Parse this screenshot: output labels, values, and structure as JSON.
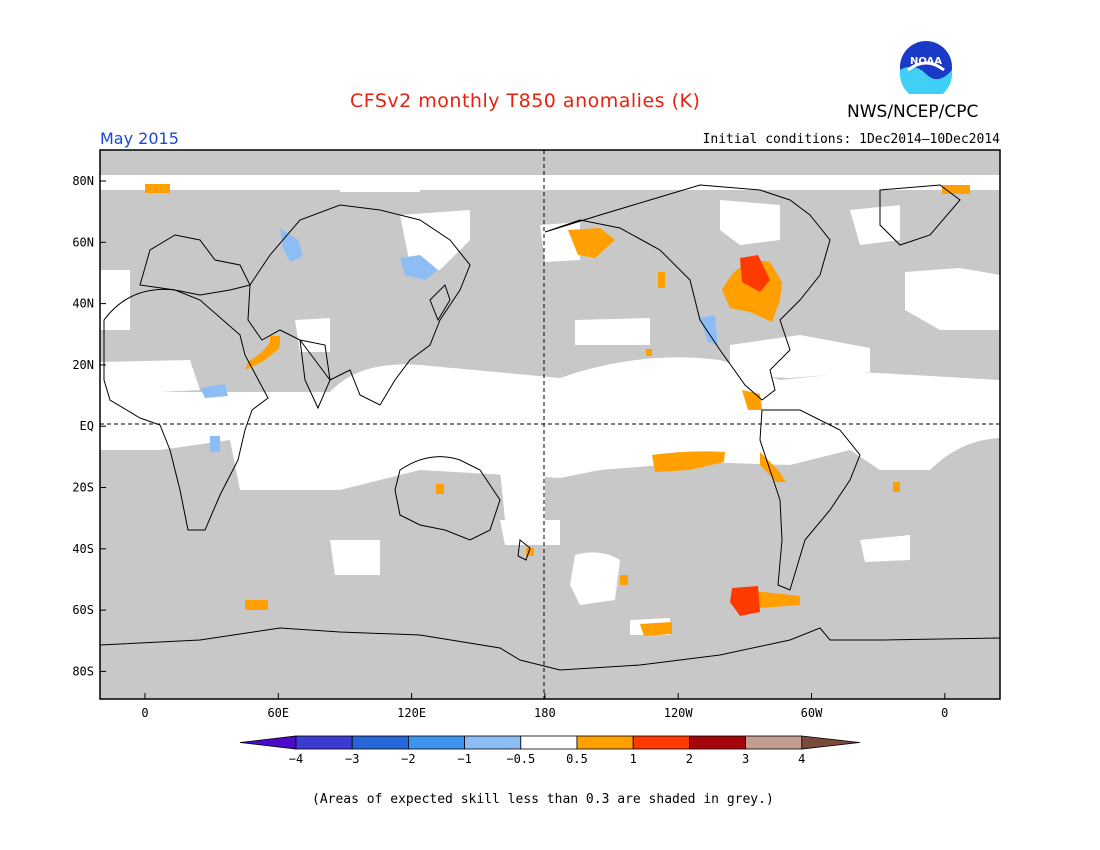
{
  "header": {
    "title": "CFSv2 monthly T850 anomalies (K)",
    "month": "May 2015",
    "initial_conditions": "Initial conditions: 1Dec2014—10Dec2014",
    "org": "NWS/NCEP/CPC",
    "logo_text": "NOAA"
  },
  "map": {
    "lat_labels": [
      "80N",
      "60N",
      "40N",
      "20N",
      "EQ",
      "20S",
      "40S",
      "60S",
      "80S"
    ],
    "lon_labels": [
      "0",
      "60E",
      "120E",
      "180",
      "120W",
      "60W",
      "0"
    ]
  },
  "colorbar": {
    "tick_labels": [
      "−4",
      "−3",
      "−2",
      "−1",
      "−0.5",
      "0.5",
      "1",
      "2",
      "3",
      "4"
    ],
    "colors": [
      "#4b0ac8",
      "#3c3cd2",
      "#2566d9",
      "#3d94ef",
      "#8cbef5",
      "#ffffff",
      "#ffa000",
      "#ff3a00",
      "#a5060a",
      "#c49c90",
      "#7a4a3a"
    ]
  },
  "colors": {
    "grey_low_skill": "#c8c8c8",
    "open": "#ffffff",
    "warm_05": "#ffa000",
    "warm_1": "#ff3a00",
    "cold_05": "#8cbef5",
    "cold_1": "#3d94ef"
  },
  "footer": {
    "skill_note": "(Areas of expected skill less than 0.3 are shaded in grey.)"
  }
}
